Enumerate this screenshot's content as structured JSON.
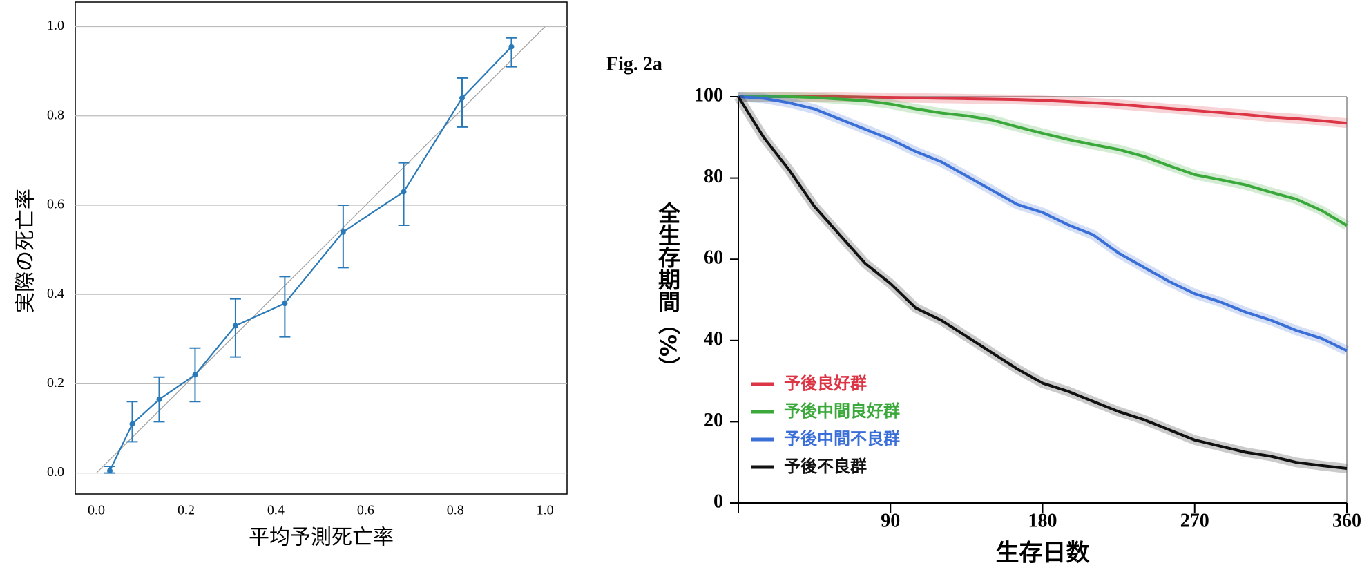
{
  "chart_data": [
    {
      "type": "line",
      "xlabel": "平均予測死亡率",
      "ylabel": "実際の死亡率",
      "x": [
        0.03,
        0.08,
        0.14,
        0.22,
        0.31,
        0.42,
        0.55,
        0.685,
        0.815,
        0.925
      ],
      "series": [
        {
          "color": "#2a7ab9",
          "values": [
            0.005,
            0.11,
            0.165,
            0.22,
            0.33,
            0.38,
            0.54,
            0.63,
            0.84,
            0.955
          ],
          "lower": [
            0.0,
            0.07,
            0.115,
            0.16,
            0.26,
            0.305,
            0.46,
            0.555,
            0.775,
            0.91
          ],
          "upper": [
            0.015,
            0.16,
            0.215,
            0.28,
            0.39,
            0.44,
            0.6,
            0.695,
            0.885,
            0.975
          ]
        }
      ],
      "reference": {
        "x": [
          0,
          1
        ],
        "y": [
          0,
          1
        ],
        "color": "#a0a0a0"
      },
      "xlim": [
        -0.047,
        1.049
      ],
      "ylim": [
        -0.047,
        1.055
      ],
      "xticks": [
        {
          "value": 0,
          "label": "0.0"
        },
        {
          "value": 0.2,
          "label": "0.2"
        },
        {
          "value": 0.4,
          "label": "0.4"
        },
        {
          "value": 0.6,
          "label": "0.6"
        },
        {
          "value": 0.8,
          "label": "0.8"
        },
        {
          "value": 1,
          "label": "1.0"
        }
      ],
      "yticks": [
        {
          "value": 0,
          "label": "0.0"
        },
        {
          "value": 0.2,
          "label": "0.2"
        },
        {
          "value": 0.4,
          "label": "0.4"
        },
        {
          "value": 0.6,
          "label": "0.6"
        },
        {
          "value": 0.8,
          "label": "0.8"
        },
        {
          "value": 1,
          "label": "1.0"
        }
      ],
      "grid": true
    },
    {
      "type": "line",
      "title": "Fig. 2a",
      "xlabel": "生存日数",
      "ylabel": "全生存期間（%）",
      "x": [
        0,
        15,
        30,
        45,
        60,
        75,
        90,
        105,
        120,
        135,
        150,
        165,
        180,
        195,
        210,
        225,
        240,
        255,
        270,
        285,
        300,
        315,
        330,
        345,
        360
      ],
      "series": [
        {
          "name": "予後良好群",
          "color": "#dc3545",
          "values": [
            100,
            100,
            100,
            100,
            100,
            99.9,
            99.8,
            99.7,
            99.6,
            99.5,
            99.4,
            99.3,
            99.1,
            98.8,
            98.5,
            98.1,
            97.6,
            97.1,
            96.6,
            96.1,
            95.6,
            95.0,
            94.6,
            94.1,
            93.5
          ]
        },
        {
          "name": "予後中間良好群",
          "color": "#3aa83a",
          "values": [
            100,
            100,
            100,
            99.8,
            99.4,
            99,
            98.2,
            97,
            96,
            95.3,
            94.3,
            92.6,
            91,
            89.5,
            88.2,
            87,
            85.3,
            83,
            80.8,
            79.6,
            78.3,
            76.5,
            74.8,
            72,
            68.3
          ]
        },
        {
          "name": "予後中間不良群",
          "color": "#3b6fd8",
          "values": [
            100,
            99.6,
            98.5,
            97,
            94.5,
            92,
            89.5,
            86.5,
            84,
            80.5,
            77,
            73.5,
            71.5,
            68.5,
            66,
            61.5,
            58,
            54.5,
            51.5,
            49.5,
            47,
            45,
            42.5,
            40.5,
            37.5
          ]
        },
        {
          "name": "予後不良群",
          "color": "#111111",
          "values": [
            100,
            90,
            82,
            73,
            66,
            59,
            54,
            48,
            45,
            41,
            37,
            33,
            29.5,
            27.5,
            25,
            22.5,
            20.5,
            18,
            15.5,
            14,
            12.5,
            11.5,
            10,
            9.2,
            8.5
          ]
        }
      ],
      "xlim": [
        0,
        360
      ],
      "ylim": [
        0,
        100
      ],
      "xticks": [
        90,
        180,
        270,
        360
      ],
      "yticks": [
        0,
        20,
        40,
        60,
        80,
        100
      ],
      "legend": "lower left"
    }
  ]
}
